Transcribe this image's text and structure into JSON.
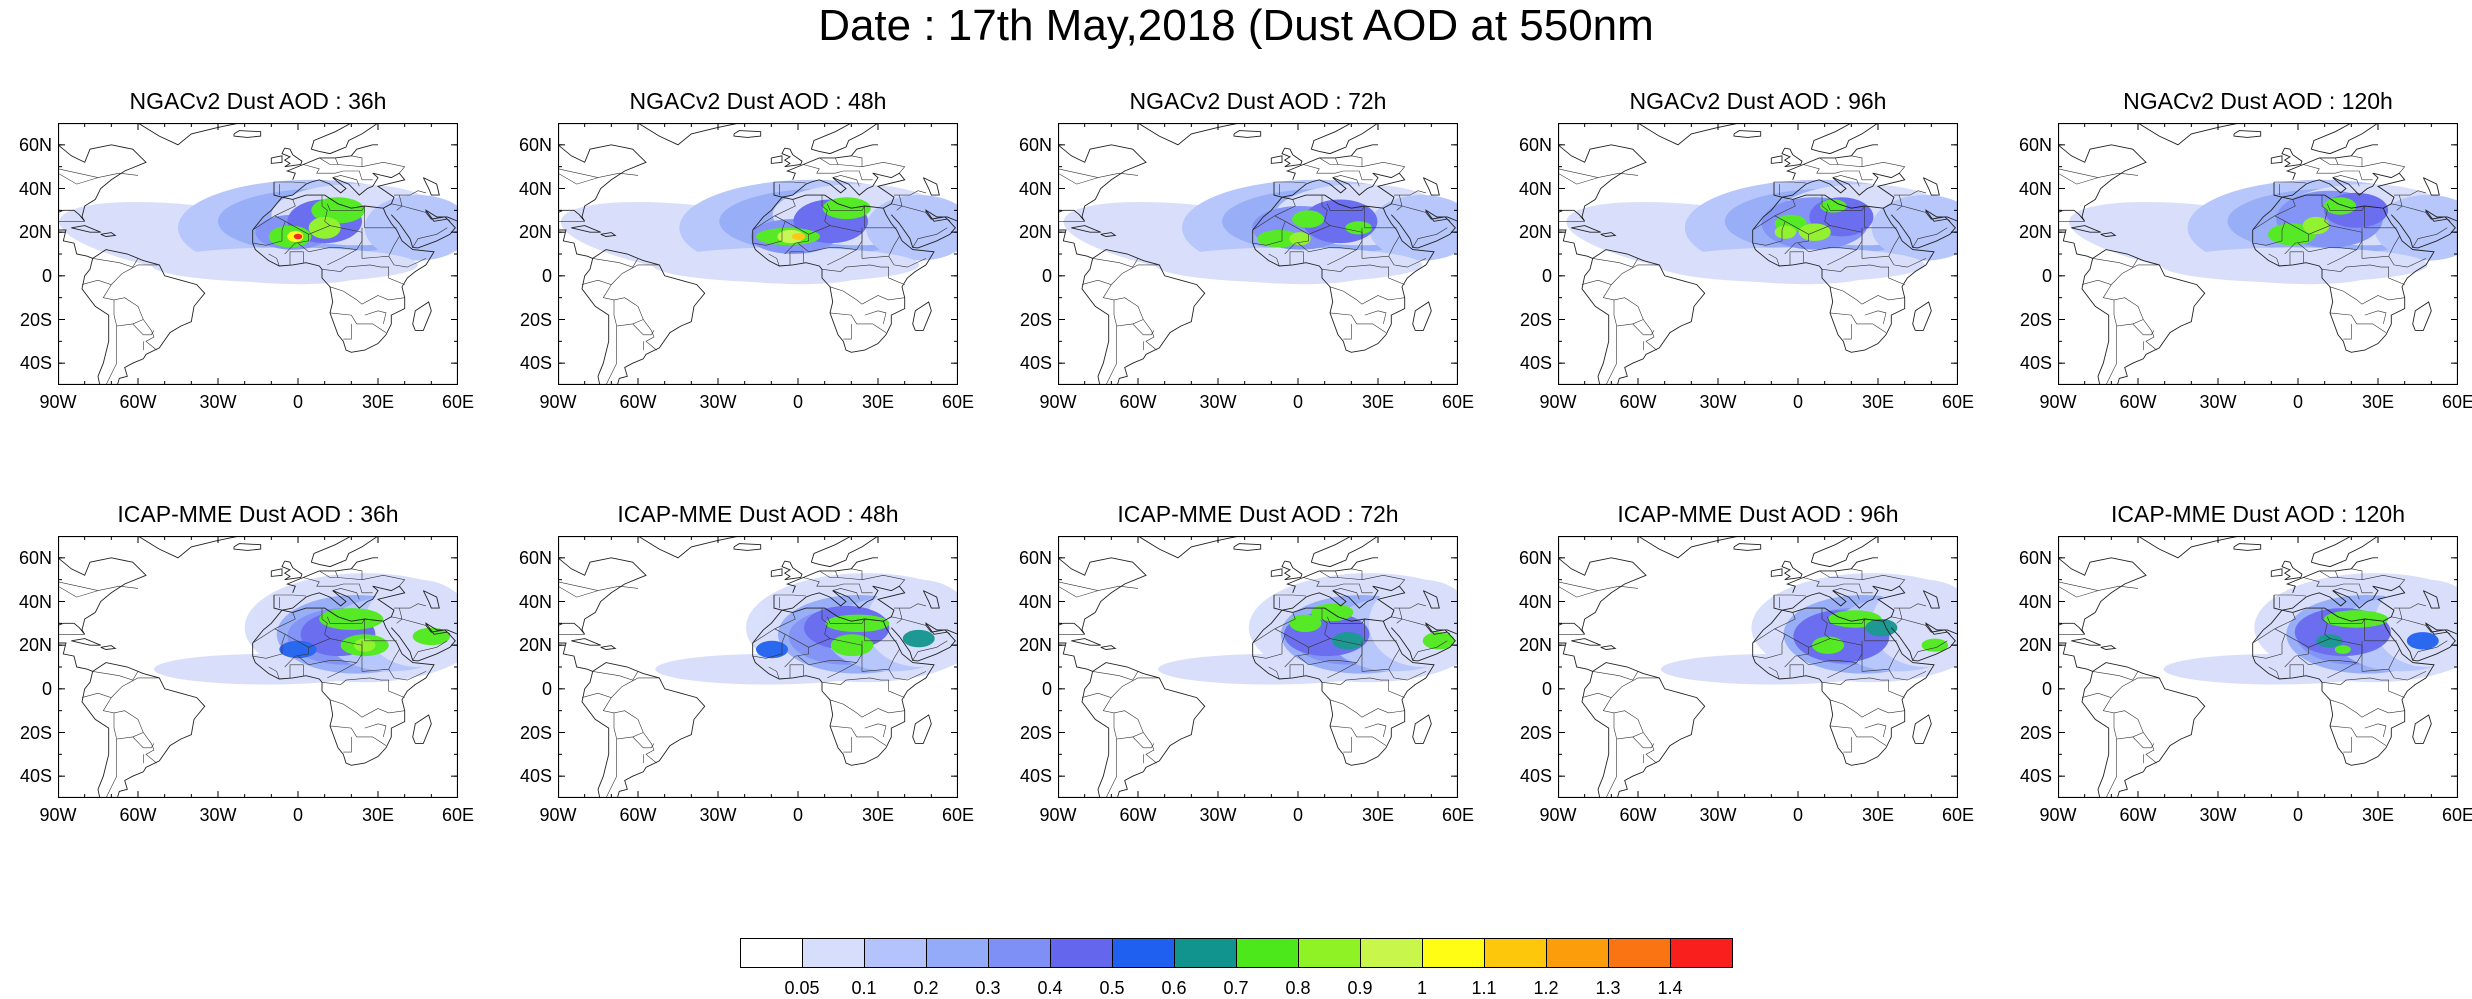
{
  "title": "Date : 17th May,2018 (Dust AOD at 550nm",
  "lat_labels": [
    "60N",
    "40N",
    "20N",
    "0",
    "20S",
    "40S"
  ],
  "lon_labels": [
    "90W",
    "60W",
    "30W",
    "0",
    "30E",
    "60E"
  ],
  "map_extent": {
    "lon": [
      -90,
      60
    ],
    "lat": [
      -50,
      70
    ]
  },
  "panels": [
    {
      "title": "NGACv2 Dust AOD : 36h",
      "model": "NGACv2",
      "lead": 36,
      "peak_aod": 1.4
    },
    {
      "title": "NGACv2 Dust AOD : 48h",
      "model": "NGACv2",
      "lead": 48,
      "peak_aod": 1.2
    },
    {
      "title": "NGACv2 Dust AOD : 72h",
      "model": "NGACv2",
      "lead": 72,
      "peak_aod": 1.0
    },
    {
      "title": "NGACv2 Dust AOD : 96h",
      "model": "NGACv2",
      "lead": 96,
      "peak_aod": 1.0
    },
    {
      "title": "NGACv2 Dust AOD : 120h",
      "model": "NGACv2",
      "lead": 120,
      "peak_aod": 1.0
    },
    {
      "title": "ICAP-MME Dust AOD : 36h",
      "model": "ICAP-MME",
      "lead": 36,
      "peak_aod": 1.0
    },
    {
      "title": "ICAP-MME Dust AOD : 48h",
      "model": "ICAP-MME",
      "lead": 48,
      "peak_aod": 1.0
    },
    {
      "title": "ICAP-MME Dust AOD : 72h",
      "model": "ICAP-MME",
      "lead": 72,
      "peak_aod": 0.9
    },
    {
      "title": "ICAP-MME Dust AOD : 96h",
      "model": "ICAP-MME",
      "lead": 96,
      "peak_aod": 0.9
    },
    {
      "title": "ICAP-MME Dust AOD : 120h",
      "model": "ICAP-MME",
      "lead": 120,
      "peak_aod": 0.9
    }
  ],
  "colorbar": {
    "labels": [
      "0.05",
      "0.1",
      "0.2",
      "0.3",
      "0.4",
      "0.5",
      "0.6",
      "0.7",
      "0.8",
      "0.9",
      "1",
      "1.1",
      "1.2",
      "1.3",
      "1.4"
    ],
    "colors": [
      "#ffffff",
      "#d7defb",
      "#b4c3fb",
      "#93abf8",
      "#7e8ff6",
      "#6467ee",
      "#1f60f0",
      "#11938e",
      "#4de81b",
      "#8ef224",
      "#c8f64b",
      "#fffd14",
      "#fdc70b",
      "#fc9e0b",
      "#fa7413",
      "#f81f1d"
    ]
  }
}
